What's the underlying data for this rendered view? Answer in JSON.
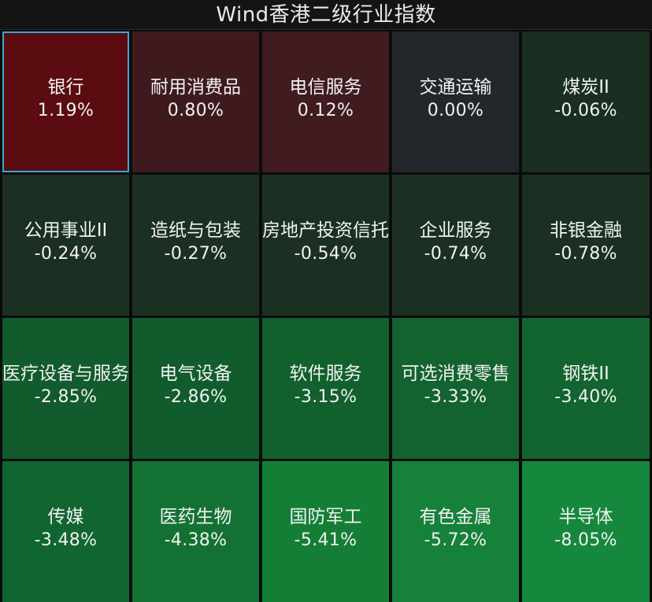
{
  "header": {
    "title": "Wind香港二级行业指数"
  },
  "tiles": [
    {
      "name": "银行",
      "change": "1.19%",
      "color": "#5a0c10"
    },
    {
      "name": "耐用消费品",
      "change": "0.80%",
      "color": "#3e1a1e"
    },
    {
      "name": "电信服务",
      "change": "0.12%",
      "color": "#401b1f"
    },
    {
      "name": "交通运输",
      "change": "0.00%",
      "color": "#23262b"
    },
    {
      "name": "煤炭II",
      "change": "-0.06%",
      "color": "#1a2e22"
    },
    {
      "name": "公用事业II",
      "change": "-0.24%",
      "color": "#1b3022"
    },
    {
      "name": "造纸与包装",
      "change": "-0.27%",
      "color": "#1b3022"
    },
    {
      "name": "房地产投资信托",
      "change": "-0.54%",
      "color": "#1b3022"
    },
    {
      "name": "企业服务",
      "change": "-0.74%",
      "color": "#1b3022"
    },
    {
      "name": "非银金融",
      "change": "-0.78%",
      "color": "#1b3022"
    },
    {
      "name": "医疗设备与服务",
      "change": "-2.85%",
      "color": "#115b2c"
    },
    {
      "name": "电气设备",
      "change": "-2.86%",
      "color": "#115c2d"
    },
    {
      "name": "软件服务",
      "change": "-3.15%",
      "color": "#11602e"
    },
    {
      "name": "可选消费零售",
      "change": "-3.33%",
      "color": "#12632f"
    },
    {
      "name": "钢铁II",
      "change": "-3.40%",
      "color": "#126430"
    },
    {
      "name": "传媒",
      "change": "-3.48%",
      "color": "#116531"
    },
    {
      "name": "医药生物",
      "change": "-4.38%",
      "color": "#137233"
    },
    {
      "name": "国防军工",
      "change": "-5.41%",
      "color": "#147e37"
    },
    {
      "name": "有色金属",
      "change": "-5.72%",
      "color": "#15813a"
    },
    {
      "name": "半导体",
      "change": "-8.05%",
      "color": "#15883d"
    }
  ],
  "selected_tile": "银行"
}
